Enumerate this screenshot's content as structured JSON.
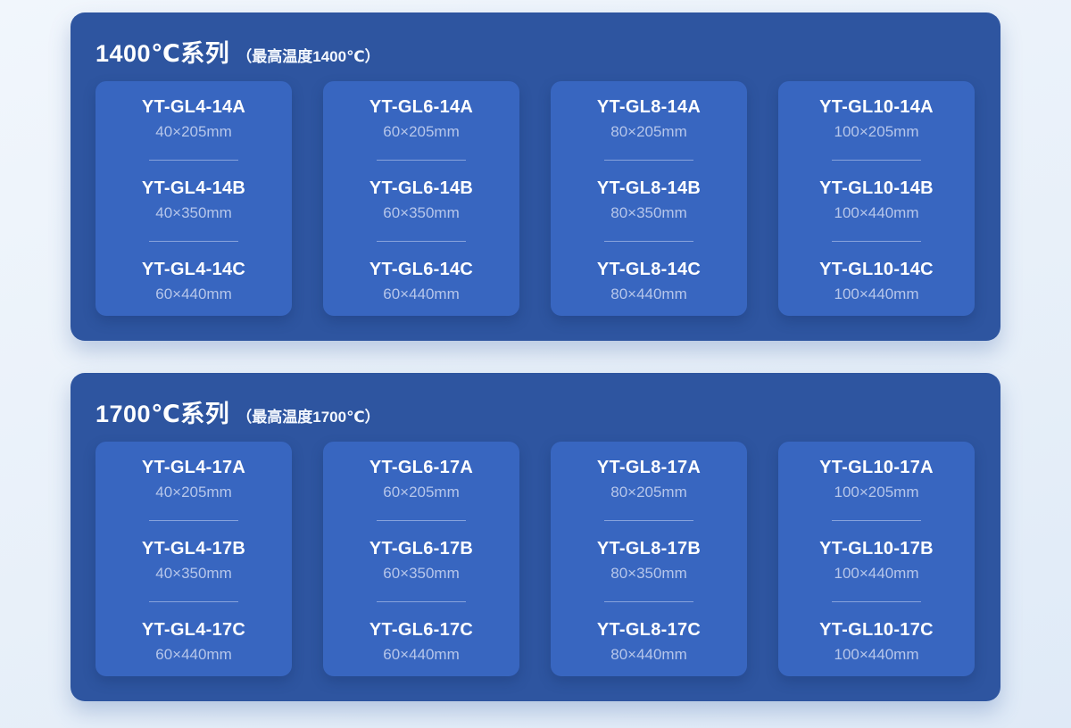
{
  "colors": {
    "page_background_top": "#f1f6fc",
    "page_background_bottom": "#dfeaf7",
    "panel_background": "#2e55a0",
    "card_background": "#3866c0",
    "model_name_text": "#ffffff",
    "model_size_text": "#b6c6ea",
    "divider": "#87a3dc"
  },
  "sections": [
    {
      "id": "series-1400",
      "title": "1400℃系列",
      "subtitle": "（最高温度1400℃）",
      "cards": [
        {
          "models": [
            {
              "name": "YT-GL4-14A",
              "size": "40×205mm"
            },
            {
              "name": "YT-GL4-14B",
              "size": "40×350mm"
            },
            {
              "name": "YT-GL4-14C",
              "size": "60×440mm"
            }
          ]
        },
        {
          "models": [
            {
              "name": "YT-GL6-14A",
              "size": "60×205mm"
            },
            {
              "name": "YT-GL6-14B",
              "size": "60×350mm"
            },
            {
              "name": "YT-GL6-14C",
              "size": "60×440mm"
            }
          ]
        },
        {
          "models": [
            {
              "name": "YT-GL8-14A",
              "size": "80×205mm"
            },
            {
              "name": "YT-GL8-14B",
              "size": "80×350mm"
            },
            {
              "name": "YT-GL8-14C",
              "size": "80×440mm"
            }
          ]
        },
        {
          "models": [
            {
              "name": "YT-GL10-14A",
              "size": "100×205mm"
            },
            {
              "name": "YT-GL10-14B",
              "size": "100×440mm"
            },
            {
              "name": "YT-GL10-14C",
              "size": "100×440mm"
            }
          ]
        }
      ]
    },
    {
      "id": "series-1700",
      "title": "1700℃系列",
      "subtitle": "（最高温度1700℃）",
      "cards": [
        {
          "models": [
            {
              "name": "YT-GL4-17A",
              "size": "40×205mm"
            },
            {
              "name": "YT-GL4-17B",
              "size": "40×350mm"
            },
            {
              "name": "YT-GL4-17C",
              "size": "60×440mm"
            }
          ]
        },
        {
          "models": [
            {
              "name": "YT-GL6-17A",
              "size": "60×205mm"
            },
            {
              "name": "YT-GL6-17B",
              "size": "60×350mm"
            },
            {
              "name": "YT-GL6-17C",
              "size": "60×440mm"
            }
          ]
        },
        {
          "models": [
            {
              "name": "YT-GL8-17A",
              "size": "80×205mm"
            },
            {
              "name": "YT-GL8-17B",
              "size": "80×350mm"
            },
            {
              "name": "YT-GL8-17C",
              "size": "80×440mm"
            }
          ]
        },
        {
          "models": [
            {
              "name": "YT-GL10-17A",
              "size": "100×205mm"
            },
            {
              "name": "YT-GL10-17B",
              "size": "100×440mm"
            },
            {
              "name": "YT-GL10-17C",
              "size": "100×440mm"
            }
          ]
        }
      ]
    }
  ]
}
